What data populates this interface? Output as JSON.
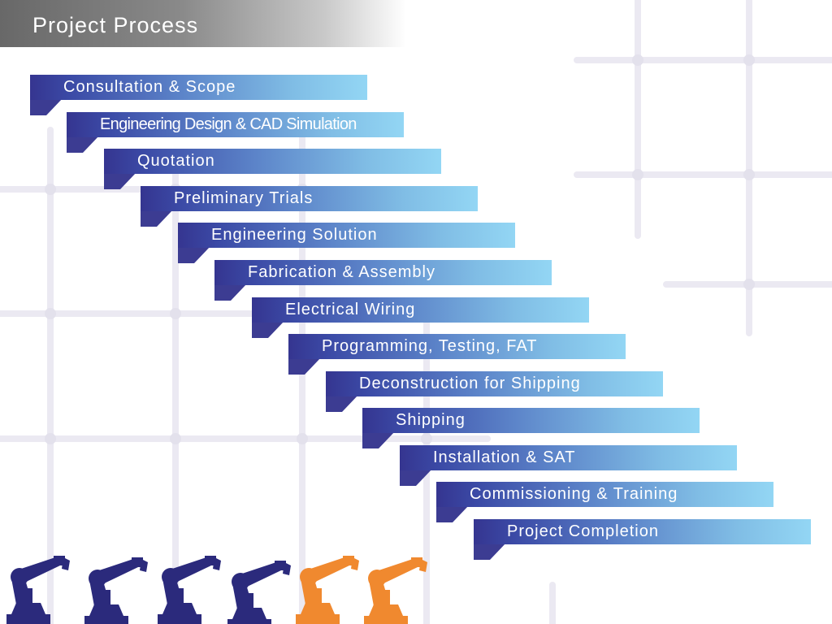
{
  "title": "Project Process",
  "steps": [
    {
      "label": "Consultation & Scope"
    },
    {
      "label": "Engineering Design & CAD Simulation"
    },
    {
      "label": "Quotation"
    },
    {
      "label": "Preliminary Trials"
    },
    {
      "label": "Engineering Solution"
    },
    {
      "label": "Fabrication & Assembly"
    },
    {
      "label": "Electrical Wiring"
    },
    {
      "label": "Programming, Testing, FAT"
    },
    {
      "label": "Deconstruction for Shipping"
    },
    {
      "label": "Shipping"
    },
    {
      "label": "Installation & SAT"
    },
    {
      "label": "Commissioning & Training"
    },
    {
      "label": "Project Completion"
    }
  ],
  "colors": {
    "bar_start": "#353590",
    "bar_end": "#93d6f4",
    "robot_navy": "#2b2a7c",
    "robot_orange": "#f0892f",
    "grid": "#ebe9f2"
  },
  "robots": [
    {
      "icon": "industrial-robot-arm-icon",
      "color": "navy"
    },
    {
      "icon": "industrial-robot-arm-icon",
      "color": "navy"
    },
    {
      "icon": "industrial-robot-arm-icon",
      "color": "navy"
    },
    {
      "icon": "industrial-robot-arm-icon",
      "color": "navy"
    },
    {
      "icon": "industrial-robot-arm-icon",
      "color": "orange"
    },
    {
      "icon": "industrial-robot-arm-icon",
      "color": "orange"
    }
  ]
}
